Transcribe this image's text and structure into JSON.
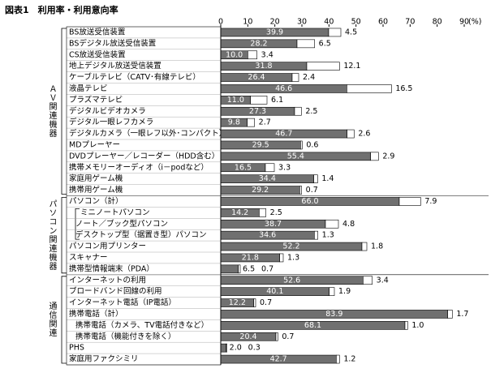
{
  "chart_data": {
    "type": "stacked-bar-horizontal",
    "title": "図表1　利用率・利用意向率",
    "x_unit": "(%)",
    "xlim": [
      0,
      90
    ],
    "xticks": [
      0,
      10,
      20,
      30,
      40,
      50,
      60,
      70,
      80,
      90
    ],
    "categories": [
      "BS放送受信装置",
      "BSデジタル放送受信装置",
      "CS放送受信装置",
      "地上デジタル放送受信装置",
      "ケーブルテレビ（CATV･有線テレビ）",
      "液晶テレビ",
      "プラズマテレビ",
      "デジタルビデオカメラ",
      "デジタル一眼レフカメラ",
      "デジタルカメラ（一眼レフ以外･コンパクト）",
      "MDプレーヤー",
      "DVDプレーヤー／レコーダー（HDD含む）",
      "携帯メモリーオーディオ（i－podなど）",
      "家庭用ゲーム機",
      "携帯用ゲーム機",
      "パソコン（計）",
      "ミニノートパソコン",
      "ノート／ブック型パソコン",
      "デスクトップ型（据置き型）パソコン",
      "パソコン用プリンター",
      "スキャナー",
      "携帯型情報端末（PDA）",
      "インターネットの利用",
      "ブロードバンド回線の利用",
      "インターネット電話（IP電話）",
      "携帯電話（計）",
      "携帯電話（カメラ、TV電話付きなど）",
      "携帯電話（機能付きを除く）",
      "PHS",
      "家庭用ファクシミリ"
    ],
    "groups": [
      {
        "name": "ＡＶ関連機器",
        "count": 15
      },
      {
        "name": "パソコン関連機器",
        "count": 7
      },
      {
        "name": "通信関連",
        "count": 8
      }
    ],
    "series": [
      {
        "color": "#707070",
        "values": [
          39.9,
          28.2,
          10.0,
          31.8,
          26.4,
          46.6,
          11.0,
          27.3,
          9.8,
          46.7,
          29.5,
          55.4,
          16.5,
          34.4,
          29.2,
          66.0,
          14.2,
          38.7,
          34.6,
          52.2,
          21.8,
          6.5,
          52.6,
          40.1,
          12.2,
          83.9,
          68.1,
          20.4,
          2.0,
          42.7
        ],
        "value_labels": [
          "39.9",
          "28.2",
          "10.0",
          "31.8",
          "26.4",
          "46.6",
          "11.0",
          "27.3",
          "9.8",
          "46.7",
          "29.5",
          "55.4",
          "16.5",
          "34.4",
          "29.2",
          "66.0",
          "14.2",
          "38.7",
          "34.6",
          "52.2",
          "21.8",
          "6.5",
          "52.6",
          "40.1",
          "12.2",
          "83.9",
          "68.1",
          "20.4",
          "2.0",
          "42.7"
        ]
      },
      {
        "color": "#ffffff",
        "values": [
          4.5,
          6.5,
          3.4,
          12.1,
          2.4,
          16.5,
          6.1,
          2.5,
          2.7,
          2.6,
          0.6,
          2.9,
          3.3,
          1.4,
          0.7,
          7.9,
          2.5,
          4.8,
          1.3,
          1.8,
          1.3,
          0.7,
          3.4,
          1.9,
          0.7,
          1.7,
          1.0,
          0.7,
          0.3,
          1.2
        ],
        "value_labels": [
          "4.5",
          "6.5",
          "3.4",
          "12.1",
          "2.4",
          "16.5",
          "6.1",
          "2.5",
          "2.7",
          "2.6",
          "0.6",
          "2.9",
          "3.3",
          "1.4",
          "0.7",
          "7.9",
          "2.5",
          "4.8",
          "1.3",
          "1.8",
          "1.3",
          "0.7",
          "3.4",
          "1.9",
          "0.7",
          "1.7",
          "1.0",
          "0.7",
          "0.3",
          "1.2"
        ]
      }
    ]
  }
}
